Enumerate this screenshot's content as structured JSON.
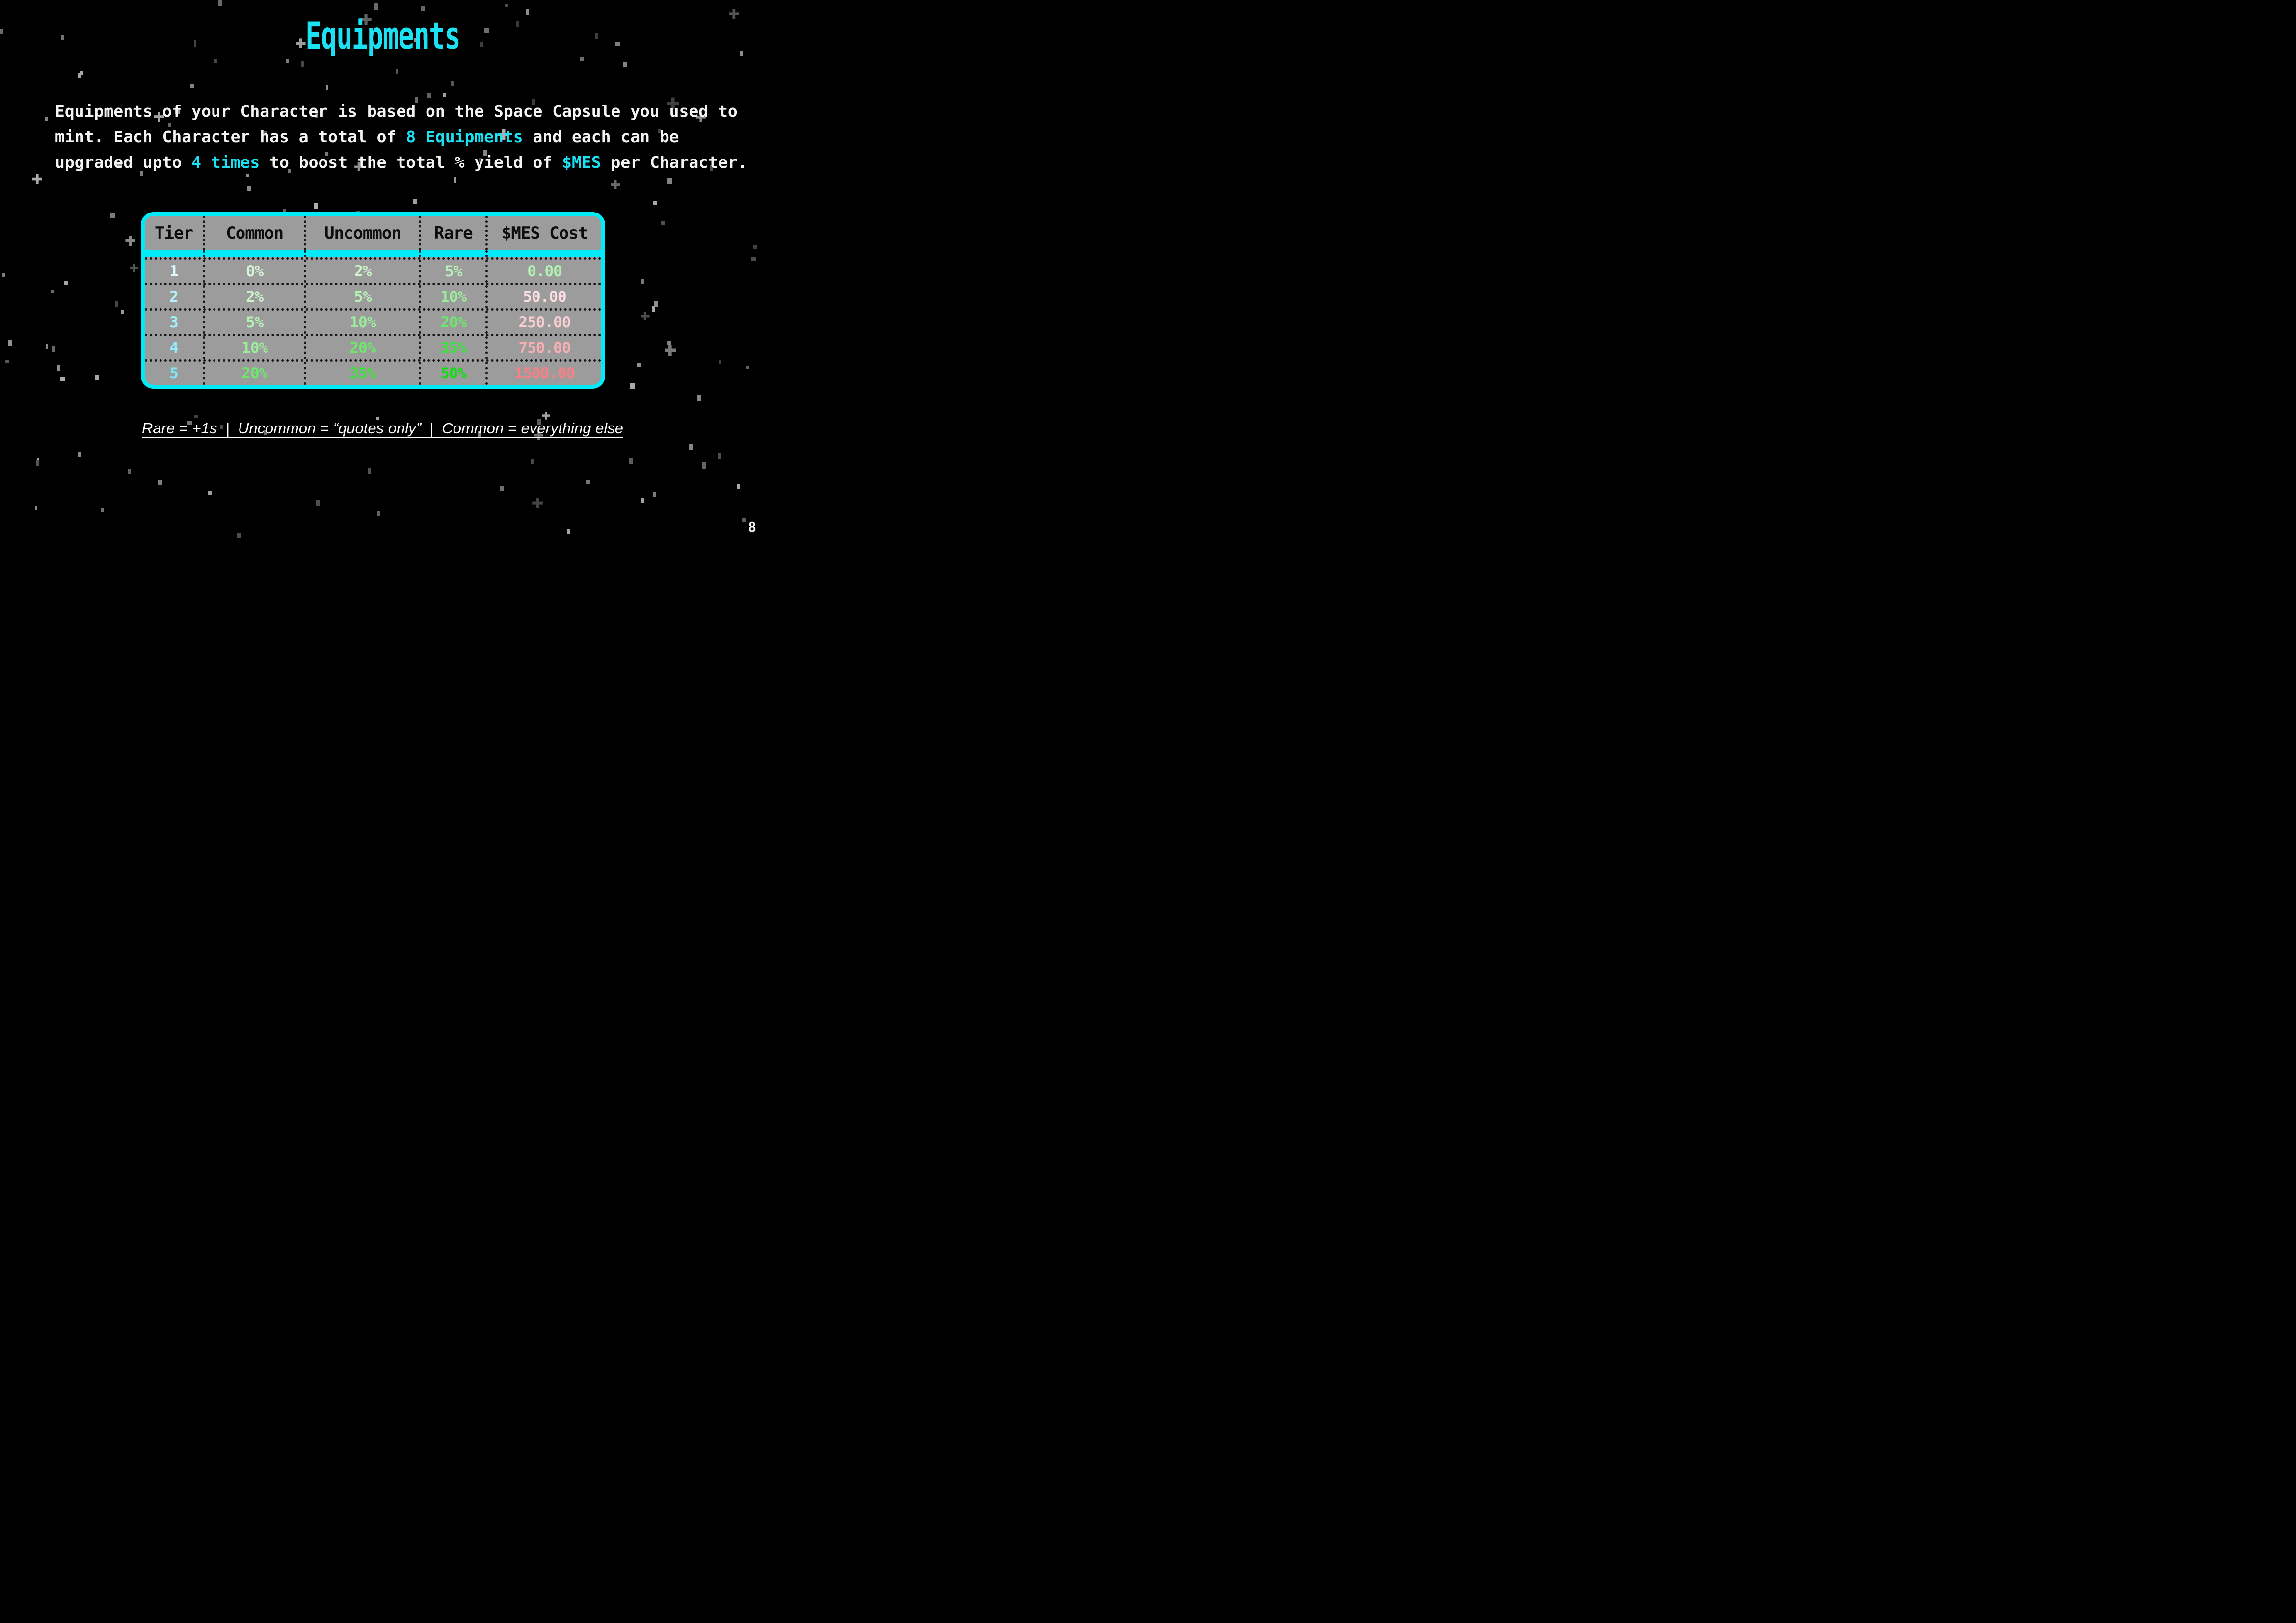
{
  "theme": {
    "bg": "#000000",
    "text": "#f3f3f3",
    "accent": "#1ae2f4",
    "table_bg": "#9c9c9c",
    "table_border": "#00eaf8",
    "ink": "#0d0d0d",
    "dots": "#161616",
    "star": "#8a8a8a"
  },
  "header": {
    "title": "Equipments",
    "page_number": "8"
  },
  "intro": {
    "parts": [
      {
        "t": "Equipments of your Character is based on the Space Capsule you used to"
      },
      {
        "t": "mint. Each Character has a total of "
      },
      {
        "t": "8 Equipments",
        "accent": true
      },
      {
        "t": " and each can be"
      },
      {
        "t": "upgraded upto "
      },
      {
        "t": "4 times",
        "accent": true
      },
      {
        "t": " to boost the total % yield of "
      },
      {
        "t": "$MES",
        "accent": true
      },
      {
        "t": " per Character."
      }
    ]
  },
  "table": {
    "headers": [
      "Tier",
      "Common",
      "Uncommon",
      "Rare",
      "$MES Cost"
    ],
    "rows": [
      {
        "tier": {
          "t": "1",
          "c": "#dcf9fc"
        },
        "common": {
          "t": "0%",
          "c": "#d5f6d5"
        },
        "uncommon": {
          "t": "2%",
          "c": "#cbf4cb"
        },
        "rare": {
          "t": "5%",
          "c": "#b6f1b6"
        },
        "cost": {
          "t": "0.00",
          "c": "#b2f1b2"
        }
      },
      {
        "tier": {
          "t": "2",
          "c": "#b6f2fb"
        },
        "common": {
          "t": "2%",
          "c": "#cbf4cb"
        },
        "uncommon": {
          "t": "5%",
          "c": "#b6f1b6"
        },
        "rare": {
          "t": "10%",
          "c": "#99ed99"
        },
        "cost": {
          "t": "50.00",
          "c": "#fadde1"
        }
      },
      {
        "tier": {
          "t": "3",
          "c": "#a4effa"
        },
        "common": {
          "t": "5%",
          "c": "#b6f1b6"
        },
        "uncommon": {
          "t": "10%",
          "c": "#99ed99"
        },
        "rare": {
          "t": "20%",
          "c": "#6de86d"
        },
        "cost": {
          "t": "250.00",
          "c": "#f8ced2"
        }
      },
      {
        "tier": {
          "t": "4",
          "c": "#90ecfa"
        },
        "common": {
          "t": "10%",
          "c": "#99ed99"
        },
        "uncommon": {
          "t": "20%",
          "c": "#6de86d"
        },
        "rare": {
          "t": "35%",
          "c": "#3ce33c"
        },
        "cost": {
          "t": "750.00",
          "c": "#f9aeb4"
        }
      },
      {
        "tier": {
          "t": "5",
          "c": "#7fe9f9"
        },
        "common": {
          "t": "20%",
          "c": "#6de86d"
        },
        "uncommon": {
          "t": "35%",
          "c": "#3ce33c"
        },
        "rare": {
          "t": "50%",
          "c": "#0fdf0f"
        },
        "cost": {
          "t": "1500.00",
          "c": "#f88185"
        }
      }
    ]
  },
  "footnote": {
    "text": "Rare = +1s  |  Uncommon = “quotes only”  |  Common = everything else"
  }
}
